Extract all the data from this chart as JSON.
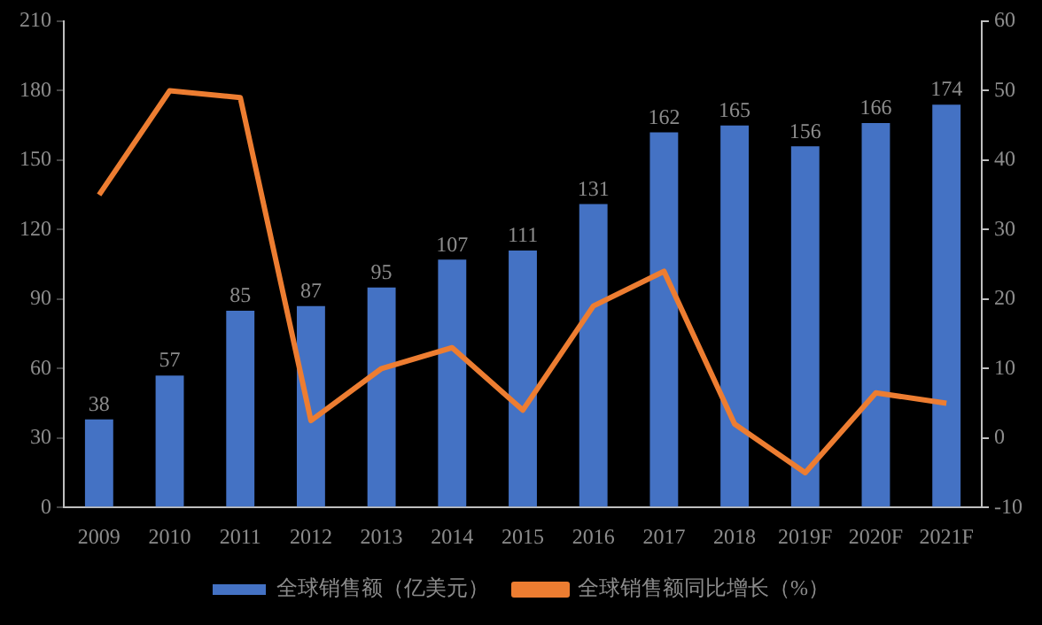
{
  "chart_data": {
    "type": "bar",
    "categories": [
      "2009",
      "2010",
      "2011",
      "2012",
      "2013",
      "2014",
      "2015",
      "2016",
      "2017",
      "2018",
      "2019F",
      "2020F",
      "2021F"
    ],
    "series": [
      {
        "name": "全球销售额（亿美元）",
        "color": "#4472c4",
        "values": [
          38,
          57,
          85,
          87,
          95,
          107,
          111,
          131,
          162,
          165,
          156,
          166,
          174
        ],
        "data_labels": true
      },
      {
        "name": "全球销售额同比增长（%）",
        "type": "line",
        "axis": "y2",
        "color": "#ed7d31",
        "values": [
          35,
          50,
          49,
          2.5,
          10,
          13,
          4,
          19,
          24,
          2,
          -5,
          6.5,
          5
        ]
      }
    ],
    "ylim": [
      0,
      210
    ],
    "yticks": [
      0,
      30,
      60,
      90,
      120,
      150,
      180,
      210
    ],
    "y2lim": [
      -10,
      60
    ],
    "y2ticks": [
      -10,
      0,
      10,
      20,
      30,
      40,
      50,
      60
    ],
    "grid": false,
    "legend": "bottom",
    "marker": "none"
  }
}
